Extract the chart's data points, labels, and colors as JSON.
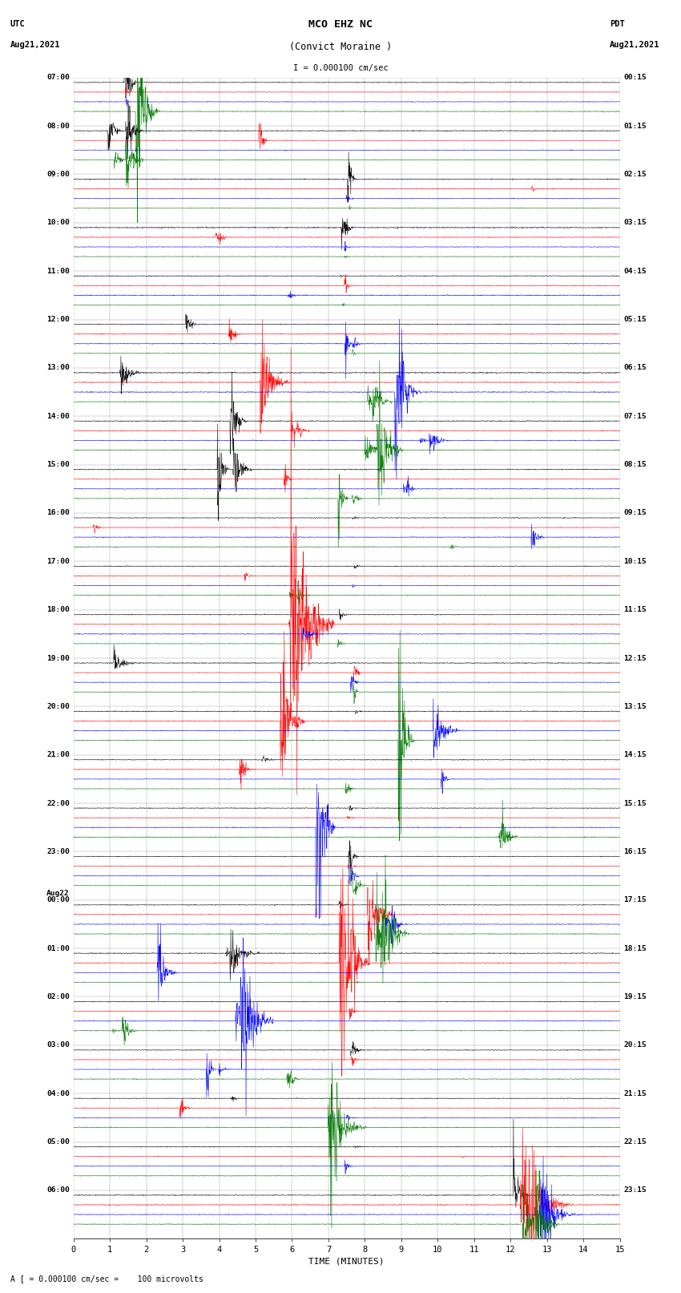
{
  "title_line1": "MCO EHZ NC",
  "title_line2": "(Convict Moraine )",
  "scale_text": "I = 0.000100 cm/sec",
  "utc_line1": "UTC",
  "utc_line2": "Aug21,2021",
  "pdt_line1": "PDT",
  "pdt_line2": "Aug21,2021",
  "footer": "A [ = 0.000100 cm/sec =    100 microvolts",
  "xlabel": "TIME (MINUTES)",
  "bg_color": "#ffffff",
  "colors": [
    "black",
    "red",
    "blue",
    "#007700"
  ],
  "n_hours": 24,
  "N_points": 1800,
  "left_labels": [
    "07:00",
    "08:00",
    "09:00",
    "10:00",
    "11:00",
    "12:00",
    "13:00",
    "14:00",
    "15:00",
    "16:00",
    "17:00",
    "18:00",
    "19:00",
    "20:00",
    "21:00",
    "22:00",
    "23:00",
    "Aug22\n00:00",
    "01:00",
    "02:00",
    "03:00",
    "04:00",
    "05:00",
    "06:00"
  ],
  "right_labels": [
    "00:15",
    "01:15",
    "02:15",
    "03:15",
    "04:15",
    "05:15",
    "06:15",
    "07:15",
    "08:15",
    "09:15",
    "10:15",
    "11:15",
    "12:15",
    "13:15",
    "14:15",
    "15:15",
    "16:15",
    "17:15",
    "18:15",
    "19:15",
    "20:15",
    "21:15",
    "22:15",
    "23:15"
  ]
}
